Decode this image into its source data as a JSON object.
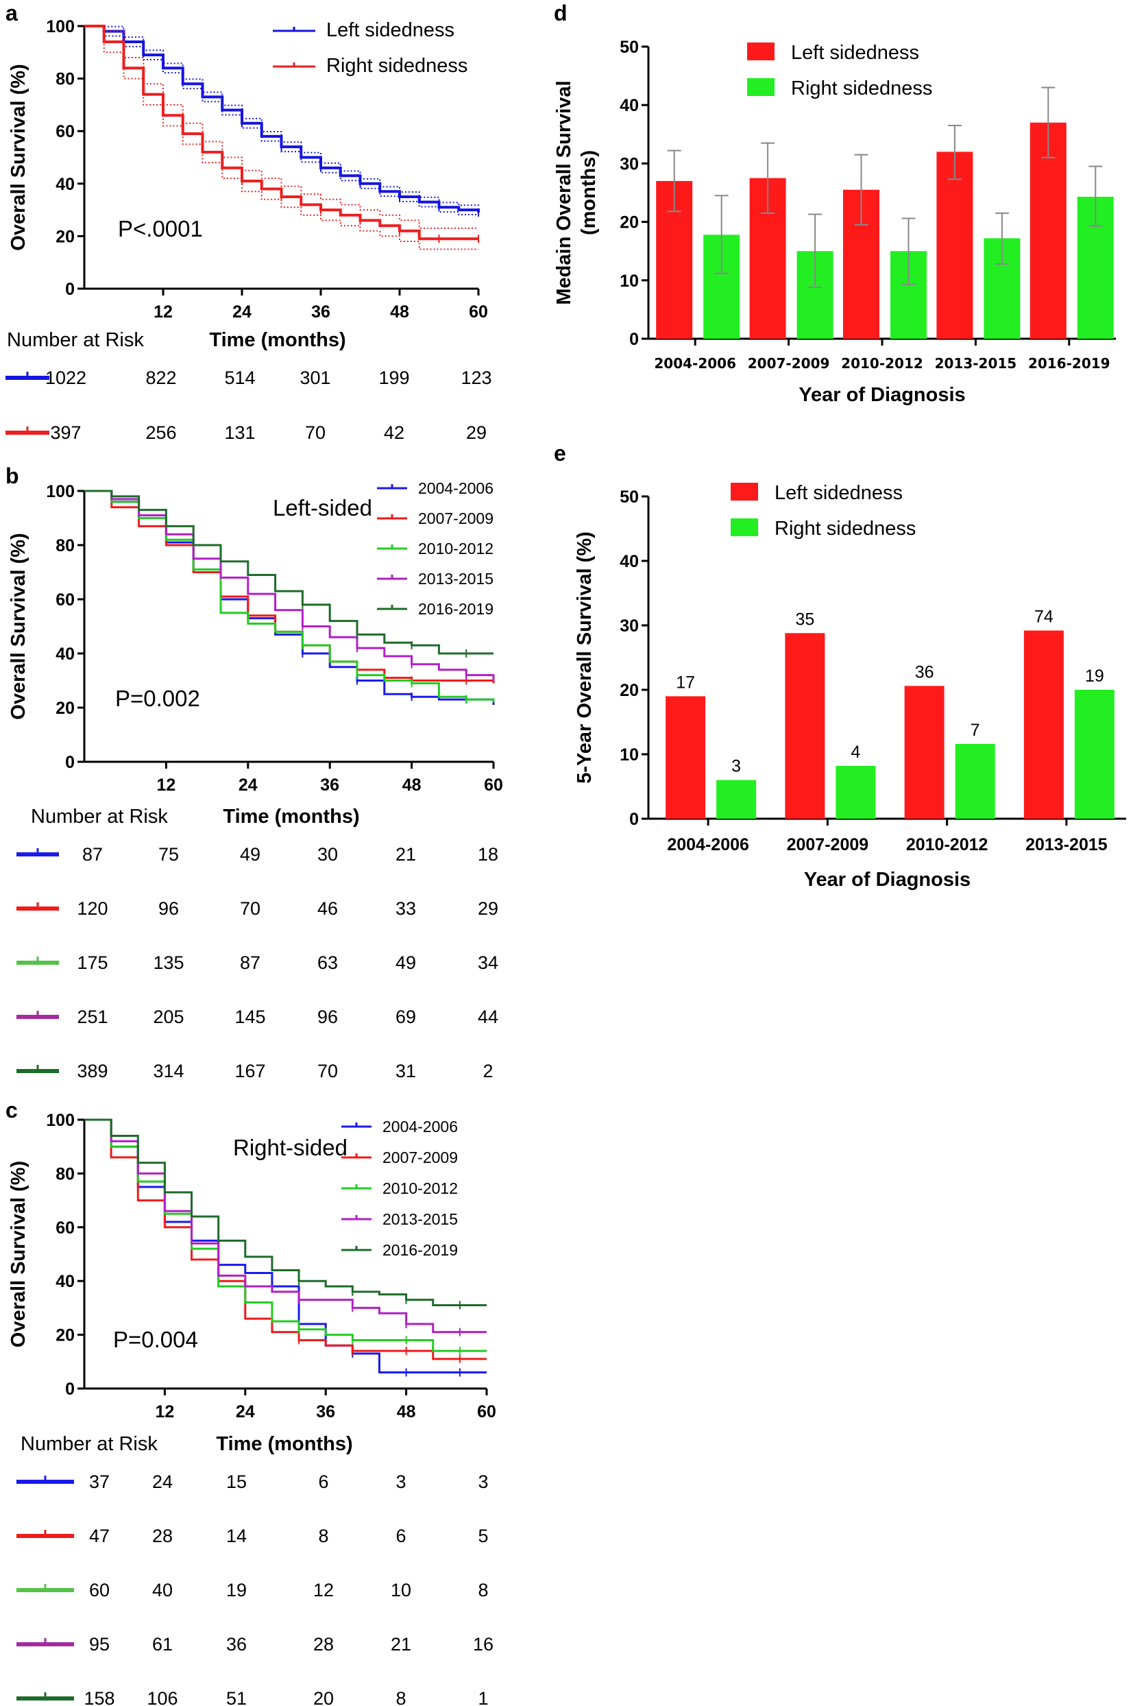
{
  "panels": {
    "a": "a",
    "b": "b",
    "c": "c",
    "d": "d",
    "e": "e"
  },
  "colors": {
    "left": "#1515e0",
    "right": "#ee1f1f",
    "bar_left": "#ff1a1a",
    "bar_right": "#22ee22",
    "p2004": "#1a1aef",
    "p2007": "#f01a1a",
    "p2010": "#22cc22",
    "p2013": "#b21ec8",
    "p2016": "#1d6b2a",
    "risk_p2010": "#55c247",
    "risk_p2013": "#a52a9f"
  },
  "chart_data": [
    {
      "id": "a",
      "type": "line",
      "ylabel": "Overall Survival (%)",
      "xlabel": "Time (months)",
      "xticks": [
        "12",
        "24",
        "36",
        "48",
        "60"
      ],
      "yticks": [
        "0",
        "20",
        "40",
        "60",
        "80",
        "100"
      ],
      "xlim": [
        0,
        60
      ],
      "ylim": [
        0,
        100
      ],
      "annotation": "P<.0001",
      "legend_position": "top-right",
      "series": [
        {
          "name": "Left sidedness",
          "color_key": "left",
          "x": [
            0,
            3,
            6,
            9,
            12,
            15,
            18,
            21,
            24,
            27,
            30,
            33,
            36,
            39,
            42,
            45,
            48,
            51,
            54,
            57,
            60
          ],
          "y": [
            100,
            98,
            94,
            89,
            84,
            78,
            73,
            68,
            63,
            58,
            54,
            50,
            46,
            43,
            40,
            37,
            35,
            33,
            31,
            30,
            29
          ]
        },
        {
          "name": "Right sidedness",
          "color_key": "right",
          "x": [
            0,
            3,
            6,
            9,
            12,
            15,
            18,
            21,
            24,
            27,
            30,
            33,
            36,
            39,
            42,
            45,
            48,
            51,
            54,
            57,
            60
          ],
          "y": [
            100,
            94,
            84,
            74,
            66,
            59,
            52,
            46,
            41,
            38,
            35,
            32,
            30,
            28,
            26,
            24,
            22,
            19,
            19,
            19,
            19
          ]
        }
      ],
      "risk_table": {
        "title": "Number at Risk",
        "rows": [
          {
            "series": "Left sidedness",
            "values": [
              "1022",
              "822",
              "514",
              "301",
              "199",
              "123"
            ]
          },
          {
            "series": "Right sidedness",
            "values": [
              "397",
              "256",
              "131",
              "70",
              "42",
              "29"
            ]
          }
        ]
      }
    },
    {
      "id": "b",
      "type": "line",
      "ylabel": "Overall Survival (%)",
      "xlabel": "Time (months)",
      "title": "Left-sided",
      "xticks": [
        "12",
        "24",
        "36",
        "48",
        "60"
      ],
      "yticks": [
        "0",
        "20",
        "40",
        "60",
        "80",
        "100"
      ],
      "xlim": [
        0,
        60
      ],
      "ylim": [
        0,
        100
      ],
      "annotation": "P=0.002",
      "legend_position": "top-right",
      "series": [
        {
          "name": "2004-2006",
          "color_key": "p2004",
          "x": [
            0,
            4,
            8,
            12,
            16,
            20,
            24,
            28,
            32,
            36,
            40,
            44,
            48,
            52,
            56,
            60
          ],
          "y": [
            100,
            96,
            91,
            81,
            71,
            60,
            53,
            47,
            40,
            35,
            30,
            25,
            24,
            23,
            23,
            21
          ]
        },
        {
          "name": "2007-2009",
          "color_key": "p2007",
          "x": [
            0,
            4,
            8,
            12,
            16,
            20,
            24,
            28,
            32,
            36,
            40,
            44,
            48,
            52,
            56,
            60
          ],
          "y": [
            100,
            94,
            87,
            80,
            70,
            61,
            54,
            48,
            43,
            37,
            34,
            31,
            30,
            30,
            30,
            29
          ]
        },
        {
          "name": "2010-2012",
          "color_key": "p2010",
          "x": [
            0,
            4,
            8,
            12,
            16,
            20,
            24,
            28,
            32,
            36,
            40,
            44,
            48,
            52,
            56,
            60
          ],
          "y": [
            100,
            96,
            90,
            82,
            71,
            55,
            51,
            48,
            43,
            37,
            32,
            30,
            29,
            24,
            23,
            22
          ]
        },
        {
          "name": "2013-2015",
          "color_key": "p2013",
          "x": [
            0,
            4,
            8,
            12,
            16,
            20,
            24,
            28,
            32,
            36,
            40,
            44,
            48,
            52,
            56,
            60
          ],
          "y": [
            100,
            97,
            91,
            84,
            75,
            68,
            62,
            56,
            50,
            46,
            42,
            39,
            36,
            34,
            32,
            30
          ]
        },
        {
          "name": "2016-2019",
          "color_key": "p2016",
          "x": [
            0,
            4,
            8,
            12,
            16,
            20,
            24,
            28,
            32,
            36,
            40,
            44,
            48,
            52,
            56,
            60
          ],
          "y": [
            100,
            98,
            93,
            87,
            80,
            74,
            69,
            63,
            58,
            52,
            47,
            44,
            43,
            40,
            40,
            40
          ]
        }
      ],
      "risk_table": {
        "title": "Number at Risk",
        "rows": [
          {
            "series": "2004-2006",
            "values": [
              "87",
              "75",
              "49",
              "30",
              "21",
              "18"
            ]
          },
          {
            "series": "2007-2009",
            "values": [
              "120",
              "96",
              "70",
              "46",
              "33",
              "29"
            ]
          },
          {
            "series": "2010-2012",
            "values": [
              "175",
              "135",
              "87",
              "63",
              "49",
              "34"
            ]
          },
          {
            "series": "2013-2015",
            "values": [
              "251",
              "205",
              "145",
              "96",
              "69",
              "44"
            ]
          },
          {
            "series": "2016-2019",
            "values": [
              "389",
              "314",
              "167",
              "70",
              "31",
              "2"
            ]
          }
        ]
      }
    },
    {
      "id": "c",
      "type": "line",
      "ylabel": "Overall Survival (%)",
      "xlabel": "Time (months)",
      "title": "Right-sided",
      "xticks": [
        "12",
        "24",
        "36",
        "48",
        "60"
      ],
      "yticks": [
        "0",
        "20",
        "40",
        "60",
        "80",
        "100"
      ],
      "xlim": [
        0,
        60
      ],
      "ylim": [
        0,
        100
      ],
      "annotation": "P=0.004",
      "legend_position": "top-right",
      "series": [
        {
          "name": "2004-2006",
          "color_key": "p2004",
          "x": [
            0,
            4,
            8,
            12,
            16,
            20,
            24,
            28,
            32,
            36,
            40,
            44,
            48,
            52,
            56,
            60
          ],
          "y": [
            100,
            90,
            75,
            62,
            55,
            46,
            43,
            38,
            24,
            16,
            13,
            6,
            6,
            6,
            6,
            6
          ]
        },
        {
          "name": "2007-2009",
          "color_key": "p2007",
          "x": [
            0,
            4,
            8,
            12,
            16,
            20,
            24,
            28,
            32,
            36,
            40,
            44,
            48,
            52,
            56,
            60
          ],
          "y": [
            100,
            86,
            70,
            60,
            48,
            40,
            26,
            21,
            18,
            16,
            14,
            14,
            14,
            11,
            11,
            11
          ]
        },
        {
          "name": "2010-2012",
          "color_key": "p2010",
          "x": [
            0,
            4,
            8,
            12,
            16,
            20,
            24,
            28,
            32,
            36,
            40,
            44,
            48,
            52,
            56,
            60
          ],
          "y": [
            100,
            90,
            77,
            65,
            52,
            38,
            32,
            25,
            22,
            20,
            18,
            18,
            18,
            14,
            14,
            14
          ]
        },
        {
          "name": "2013-2015",
          "color_key": "p2013",
          "x": [
            0,
            4,
            8,
            12,
            16,
            20,
            24,
            28,
            32,
            36,
            40,
            44,
            48,
            52,
            56,
            60
          ],
          "y": [
            100,
            92,
            80,
            66,
            54,
            42,
            38,
            36,
            33,
            33,
            30,
            28,
            24,
            21,
            21,
            21
          ]
        },
        {
          "name": "2016-2019",
          "color_key": "p2016",
          "x": [
            0,
            4,
            8,
            12,
            16,
            20,
            24,
            28,
            32,
            36,
            40,
            44,
            48,
            52,
            56,
            60
          ],
          "y": [
            100,
            94,
            84,
            73,
            64,
            55,
            49,
            44,
            40,
            38,
            36,
            35,
            33,
            31,
            31,
            31
          ]
        }
      ],
      "risk_table": {
        "title": "Number at Risk",
        "rows": [
          {
            "series": "2004-2006",
            "values": [
              "37",
              "24",
              "15",
              "6",
              "3",
              "3"
            ]
          },
          {
            "series": "2007-2009",
            "values": [
              "47",
              "28",
              "14",
              "8",
              "6",
              "5"
            ]
          },
          {
            "series": "2010-2012",
            "values": [
              "60",
              "40",
              "19",
              "12",
              "10",
              "8"
            ]
          },
          {
            "series": "2013-2015",
            "values": [
              "95",
              "61",
              "36",
              "28",
              "21",
              "16"
            ]
          },
          {
            "series": "2016-2019",
            "values": [
              "158",
              "106",
              "51",
              "20",
              "8",
              "1"
            ]
          }
        ]
      }
    },
    {
      "id": "d",
      "type": "bar",
      "ylabel_line1": "Medain Overall Survival",
      "ylabel_line2": "(months)",
      "xlabel": "Year of Diagnosis",
      "categories": [
        "2004-2006",
        "2007-2009",
        "2010-2012",
        "2013-2015",
        "2016-2019"
      ],
      "yticks": [
        "0",
        "10",
        "20",
        "30",
        "40",
        "50"
      ],
      "ylim": [
        0,
        50
      ],
      "legend_position": "top-left",
      "series": [
        {
          "name": "Left sidedness",
          "color_key": "bar_left",
          "values": [
            27,
            27.5,
            25.5,
            32,
            37
          ],
          "err_low": [
            21.8,
            21.5,
            19.5,
            27.3,
            31
          ],
          "err_high": [
            32.2,
            33.5,
            31.5,
            36.5,
            43
          ]
        },
        {
          "name": "Right sidedness",
          "color_key": "bar_right",
          "values": [
            17.8,
            15,
            15,
            17.2,
            24.3
          ],
          "err_low": [
            11.2,
            8.8,
            9.3,
            12.8,
            19.3
          ],
          "err_high": [
            24.5,
            21.3,
            20.6,
            21.5,
            29.5
          ]
        }
      ]
    },
    {
      "id": "e",
      "type": "bar",
      "ylabel": "5-Year Overall Survival (%)",
      "xlabel": "Year of Diagnosis",
      "categories": [
        "2004-2006",
        "2007-2009",
        "2010-2012",
        "2013-2015"
      ],
      "yticks": [
        "0",
        "10",
        "20",
        "30",
        "40",
        "50"
      ],
      "ylim": [
        0,
        50
      ],
      "legend_position": "top-left",
      "series": [
        {
          "name": "Left sidedness",
          "color_key": "bar_left",
          "values": [
            19,
            28.8,
            20.6,
            29.2
          ],
          "labels": [
            "17",
            "35",
            "36",
            "74"
          ]
        },
        {
          "name": "Right sidedness",
          "color_key": "bar_right",
          "values": [
            6,
            8.2,
            11.6,
            20
          ],
          "labels": [
            "3",
            "4",
            "7",
            "19"
          ]
        }
      ]
    }
  ]
}
